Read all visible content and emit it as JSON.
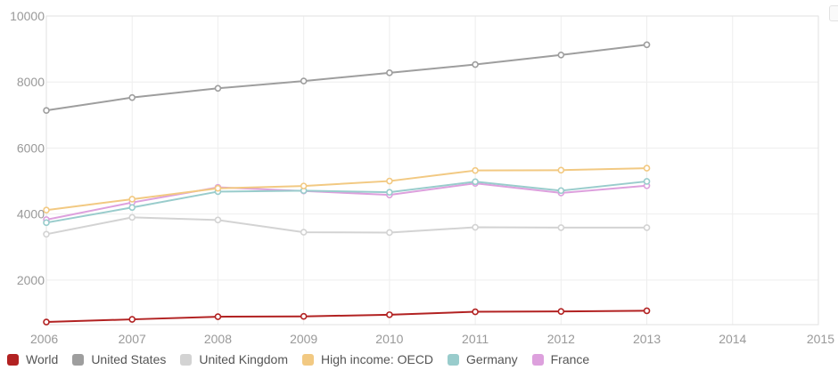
{
  "chart_data": {
    "type": "line",
    "title": "",
    "xlabel": "",
    "ylabel": "",
    "x": [
      2006,
      2007,
      2008,
      2009,
      2010,
      2011,
      2012,
      2013
    ],
    "x_ticks": [
      "2006",
      "2007",
      "2008",
      "2009",
      "2010",
      "2011",
      "2012",
      "2013",
      "2014",
      "2015"
    ],
    "xlim": [
      2006,
      2015
    ],
    "y_ticks": [
      "2000",
      "4000",
      "6000",
      "8000",
      "10000"
    ],
    "ylim": [
      650,
      10000
    ],
    "grid": true,
    "legend_position": "bottom-left",
    "series": [
      {
        "name": "World",
        "color": "#b22222",
        "values": [
          730,
          810,
          890,
          900,
          950,
          1040,
          1050,
          1070
        ]
      },
      {
        "name": "United States",
        "color": "#9e9e9e",
        "values": [
          7140,
          7530,
          7810,
          8030,
          8280,
          8530,
          8820,
          9130
        ]
      },
      {
        "name": "United Kingdom",
        "color": "#d3d3d3",
        "values": [
          3390,
          3900,
          3820,
          3450,
          3440,
          3600,
          3590,
          3590
        ]
      },
      {
        "name": "High income: OECD",
        "color": "#f2c982",
        "values": [
          4120,
          4450,
          4780,
          4850,
          5000,
          5320,
          5330,
          5390
        ]
      },
      {
        "name": "Germany",
        "color": "#99cccc",
        "values": [
          3740,
          4200,
          4680,
          4710,
          4660,
          4980,
          4710,
          4990
        ]
      },
      {
        "name": "France",
        "color": "#dda0dd",
        "values": [
          3830,
          4350,
          4810,
          4700,
          4580,
          4930,
          4640,
          4860
        ]
      }
    ]
  }
}
